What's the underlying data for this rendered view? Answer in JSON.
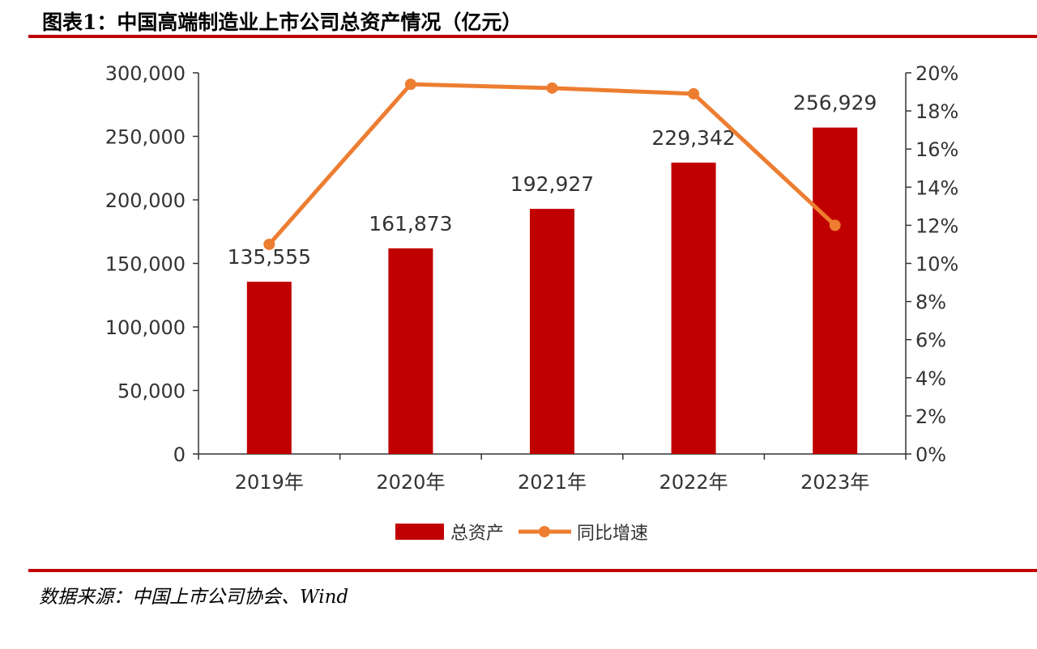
{
  "title": "图表1：中国高端制造业上市公司总资产情况（亿元）",
  "source": "数据来源：中国上市公司协会、Wind",
  "chart_data": {
    "type": "bar+line",
    "categories": [
      "2019年",
      "2020年",
      "2021年",
      "2022年",
      "2023年"
    ],
    "series": [
      {
        "name": "总资产",
        "type": "bar",
        "axis": "left",
        "color": "#C00000",
        "values": [
          135555,
          161873,
          192927,
          229342,
          256929
        ],
        "labels": [
          "135,555",
          "161,873",
          "192,927",
          "229,342",
          "256,929"
        ]
      },
      {
        "name": "同比增速",
        "type": "line",
        "axis": "right",
        "color": "#ED7D31",
        "values": [
          11.0,
          19.4,
          19.2,
          18.9,
          12.0
        ]
      }
    ],
    "left_axis": {
      "range": [
        0,
        300000
      ],
      "ticks": [
        "0",
        "50,000",
        "100,000",
        "150,000",
        "200,000",
        "250,000",
        "300,000"
      ]
    },
    "right_axis": {
      "range": [
        0,
        20
      ],
      "unit": "%",
      "ticks": [
        "0%",
        "2%",
        "4%",
        "6%",
        "8%",
        "10%",
        "12%",
        "14%",
        "16%",
        "18%",
        "20%"
      ]
    },
    "grid": false,
    "legend_position": "bottom"
  }
}
